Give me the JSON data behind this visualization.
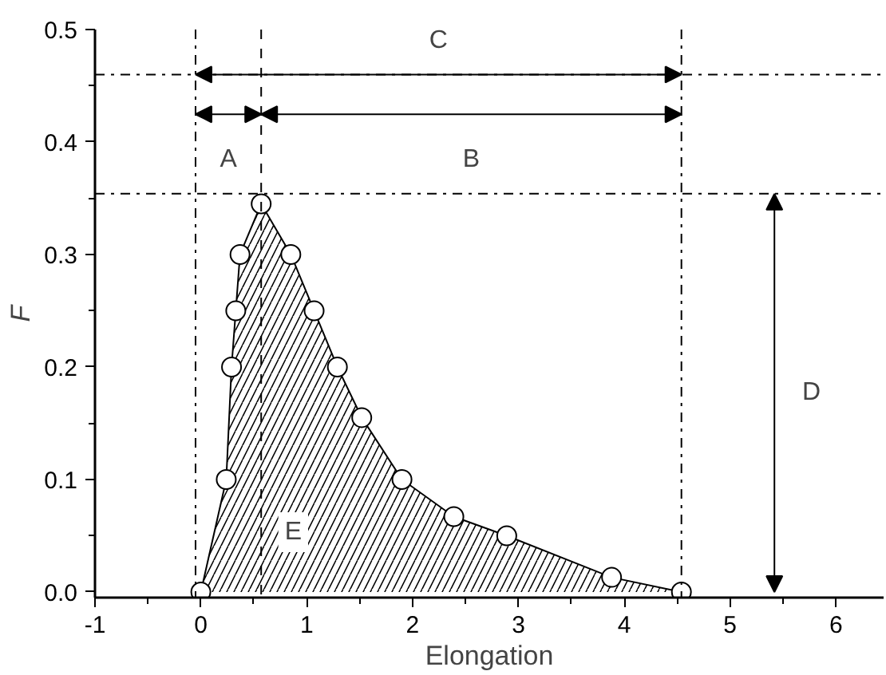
{
  "chart_data": {
    "type": "area",
    "xlabel": "Elongation",
    "ylabel": "F",
    "x": [
      0,
      0.24,
      0.29,
      0.33,
      0.37,
      0.57,
      0.85,
      1.07,
      1.29,
      1.52,
      1.9,
      2.39,
      2.89,
      3.88,
      4.54
    ],
    "series": [
      {
        "color": "#000000",
        "values": [
          0,
          0.1,
          0.2,
          0.25,
          0.3,
          0.345,
          0.3,
          0.25,
          0.2,
          0.155,
          0.1,
          0.067,
          0.05,
          0.013,
          0
        ]
      }
    ],
    "marker": "circle",
    "xlim": [
      -1.0,
      6.45
    ],
    "ylim": [
      -0.005,
      0.5
    ],
    "xticks": [
      -1,
      0,
      1,
      2,
      3,
      4,
      5,
      6
    ],
    "yticks": [
      {
        "value": 0,
        "label": "0.0"
      },
      0.1,
      0.2,
      0.3,
      0.4,
      0.5
    ],
    "ref_lines": [
      {
        "axis": "x",
        "value": -0.05,
        "line_style": "dashdot"
      },
      {
        "axis": "x",
        "value": 0.57,
        "line_style": "dashed"
      },
      {
        "axis": "x",
        "value": 4.54,
        "line_style": "dashdot"
      },
      {
        "axis": "y",
        "value": 0.354,
        "line_style": "dashdot"
      },
      {
        "axis": "y",
        "value": 0.46,
        "line_style": "dashdot"
      }
    ],
    "annotations": [
      "A",
      "B",
      "C",
      "D",
      "E"
    ],
    "grid": false
  }
}
